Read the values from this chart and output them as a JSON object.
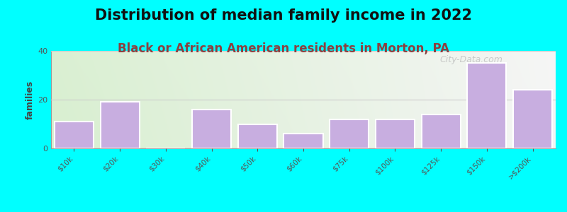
{
  "title": "Distribution of median family income in 2022",
  "subtitle": "Black or African American residents in Morton, PA",
  "categories": [
    "$10k",
    "$20k",
    "$30k",
    "$40k",
    "$50k",
    "$60k",
    "$75k",
    "$100k",
    "$125k",
    "$150k",
    ">$200k"
  ],
  "values": [
    11,
    19,
    0,
    16,
    10,
    6,
    12,
    12,
    14,
    35,
    24
  ],
  "bar_color": "#c8aee0",
  "bar_edge_color": "#ffffff",
  "background_color": "#00ffff",
  "plot_bg_left_color": "#d8efd0",
  "plot_bg_right_color": "#f5f5f5",
  "ylabel": "families",
  "ylim": [
    0,
    40
  ],
  "yticks": [
    0,
    20,
    40
  ],
  "title_fontsize": 15,
  "subtitle_fontsize": 12,
  "subtitle_color": "#8b4040",
  "watermark": "City-Data.com",
  "title_fontweight": "bold",
  "subtitle_fontweight": "bold",
  "tick_label_color": "#555555",
  "grid_color": "#cccccc"
}
